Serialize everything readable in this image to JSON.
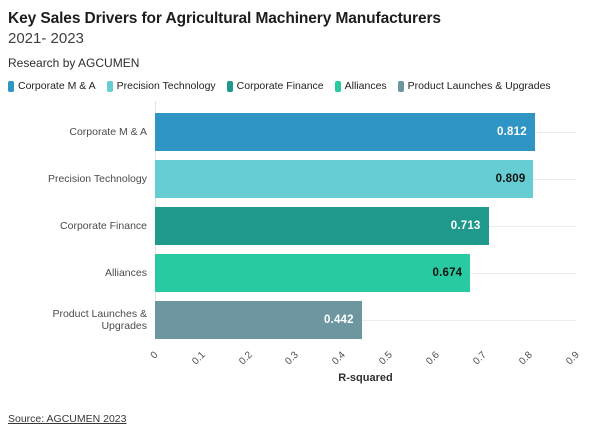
{
  "header": {
    "title": "Key Sales Drivers for Agricultural Machinery Manufacturers",
    "subtitle": "2021- 2023",
    "byline": "Research by AGCUMEN"
  },
  "legend": {
    "items": [
      {
        "label": "Corporate M & A",
        "color": "#2e95c5"
      },
      {
        "label": "Precision Technology",
        "color": "#66cdd2"
      },
      {
        "label": "Corporate Finance",
        "color": "#1f998c"
      },
      {
        "label": "Alliances",
        "color": "#28cba1"
      },
      {
        "label": "Product Launches & Upgrades",
        "color": "#6e96a1"
      }
    ]
  },
  "chart_data": {
    "type": "bar",
    "orientation": "horizontal",
    "title": "Key Sales Drivers for Agricultural Machinery Manufacturers",
    "subtitle": "2021- 2023",
    "categories": [
      "Corporate M & A",
      "Precision Technology",
      "Corporate Finance",
      "Alliances",
      "Product Launches & Upgrades"
    ],
    "values": [
      0.812,
      0.809,
      0.713,
      0.674,
      0.442
    ],
    "value_labels": [
      "0.812",
      "0.809",
      "0.713",
      "0.674",
      "0.442"
    ],
    "bar_colors": [
      "#2e95c5",
      "#66cdd2",
      "#1f998c",
      "#28cba1",
      "#6e96a1"
    ],
    "value_label_colors": [
      "#ffffff",
      "#111111",
      "#ffffff",
      "#111111",
      "#ffffff"
    ],
    "xlabel": "R-squared",
    "ylabel": "",
    "xlim": [
      0,
      0.9
    ],
    "xticks": [
      "0",
      "0.1",
      "0.2",
      "0.3",
      "0.4",
      "0.5",
      "0.6",
      "0.7",
      "0.8",
      "0.9"
    ],
    "grid": "horizontal-category-lines",
    "legend_position": "top"
  },
  "footer": {
    "source": "Source: AGCUMEN 2023"
  }
}
